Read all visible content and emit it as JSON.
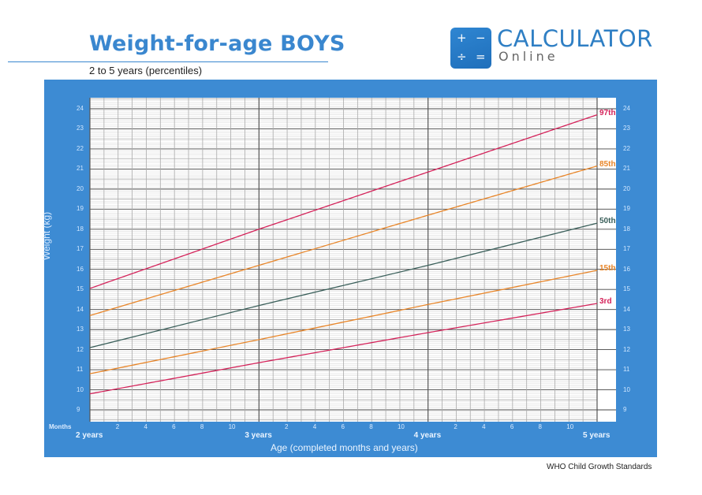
{
  "header": {
    "title": "Weight-for-age BOYS",
    "subtitle": "2 to 5 years (percentiles)"
  },
  "logo": {
    "icon": "calculator-icon",
    "symbols": [
      "+",
      "−",
      "÷",
      "="
    ],
    "brand": "CALCULATOR",
    "brand_sub": "Online",
    "color": "#2f7fc4"
  },
  "footer": {
    "source": "WHO Child Growth Standards"
  },
  "colors": {
    "panel": "#3d8bd3",
    "p97": "#d4235a",
    "p85": "#e8862a",
    "p50": "#3a5f5a",
    "p15": "#e8862a",
    "p3": "#d4235a"
  },
  "chart_data": {
    "type": "line",
    "title": "Weight-for-age BOYS",
    "subtitle": "2 to 5 years (percentiles)",
    "xlabel": "Age (completed months and years)",
    "ylabel": "Weight (kg)",
    "months_label": "Months",
    "x_unit": "months",
    "xlim": [
      24,
      60
    ],
    "ylim": [
      8.4,
      24.6
    ],
    "grid": true,
    "yticks": [
      9,
      10,
      11,
      12,
      13,
      14,
      15,
      16,
      17,
      18,
      19,
      20,
      21,
      22,
      23,
      24
    ],
    "xtick_month_labels": [
      "2",
      "4",
      "6",
      "8",
      "10",
      "2",
      "4",
      "6",
      "8",
      "10",
      "2",
      "4",
      "6",
      "8",
      "10"
    ],
    "year_labels": [
      "2 years",
      "3 years",
      "4 years",
      "5 years"
    ],
    "x": [
      24,
      36,
      48,
      60
    ],
    "series": [
      {
        "name": "97th",
        "values": [
          15.05,
          18.0,
          20.85,
          23.7
        ]
      },
      {
        "name": "85th",
        "values": [
          13.7,
          16.2,
          18.7,
          21.15
        ]
      },
      {
        "name": "50th",
        "values": [
          12.1,
          14.2,
          16.2,
          18.3
        ]
      },
      {
        "name": "15th",
        "values": [
          10.8,
          12.5,
          14.25,
          15.95
        ]
      },
      {
        "name": "3rd",
        "values": [
          9.8,
          11.35,
          12.85,
          14.3
        ]
      }
    ],
    "legend_position": "right-end inline labels"
  }
}
